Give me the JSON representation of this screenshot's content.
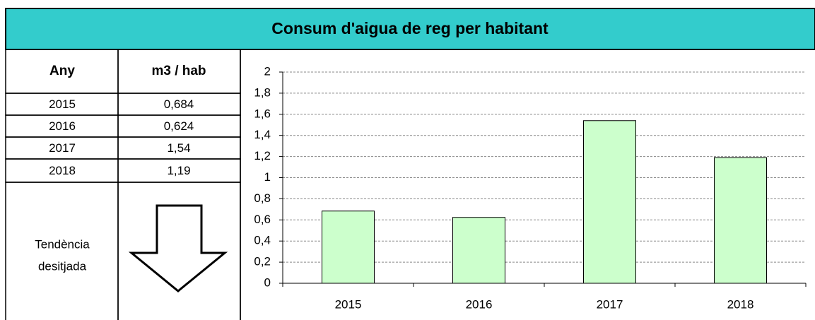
{
  "title": "Consum d'aigua de reg per habitant",
  "table": {
    "headers": [
      "Any",
      "m3 / hab"
    ],
    "rows": [
      [
        "2015",
        "0,684"
      ],
      [
        "2016",
        "0,624"
      ],
      [
        "2017",
        "1,54"
      ],
      [
        "2018",
        "1,19"
      ]
    ],
    "trend_label": [
      "Tendència",
      "desitjada"
    ]
  },
  "chart_data": {
    "type": "bar",
    "categories": [
      "2015",
      "2016",
      "2017",
      "2018"
    ],
    "values": [
      0.684,
      0.624,
      1.54,
      1.19
    ],
    "color": "#ccffcc",
    "ylim": [
      0,
      2
    ],
    "yticks": [
      0,
      {
        "value": 0.2,
        "label": "0,2"
      },
      {
        "value": 0.4,
        "label": "0,4"
      },
      {
        "value": 0.6,
        "label": "0,6"
      },
      {
        "value": 0.8,
        "label": "0,8"
      },
      1,
      {
        "value": 1.2,
        "label": "1,2"
      },
      {
        "value": 1.4,
        "label": "1,4"
      },
      {
        "value": 1.6,
        "label": "1,6"
      },
      {
        "value": 1.8,
        "label": "1,8"
      },
      2
    ],
    "grid": true
  }
}
